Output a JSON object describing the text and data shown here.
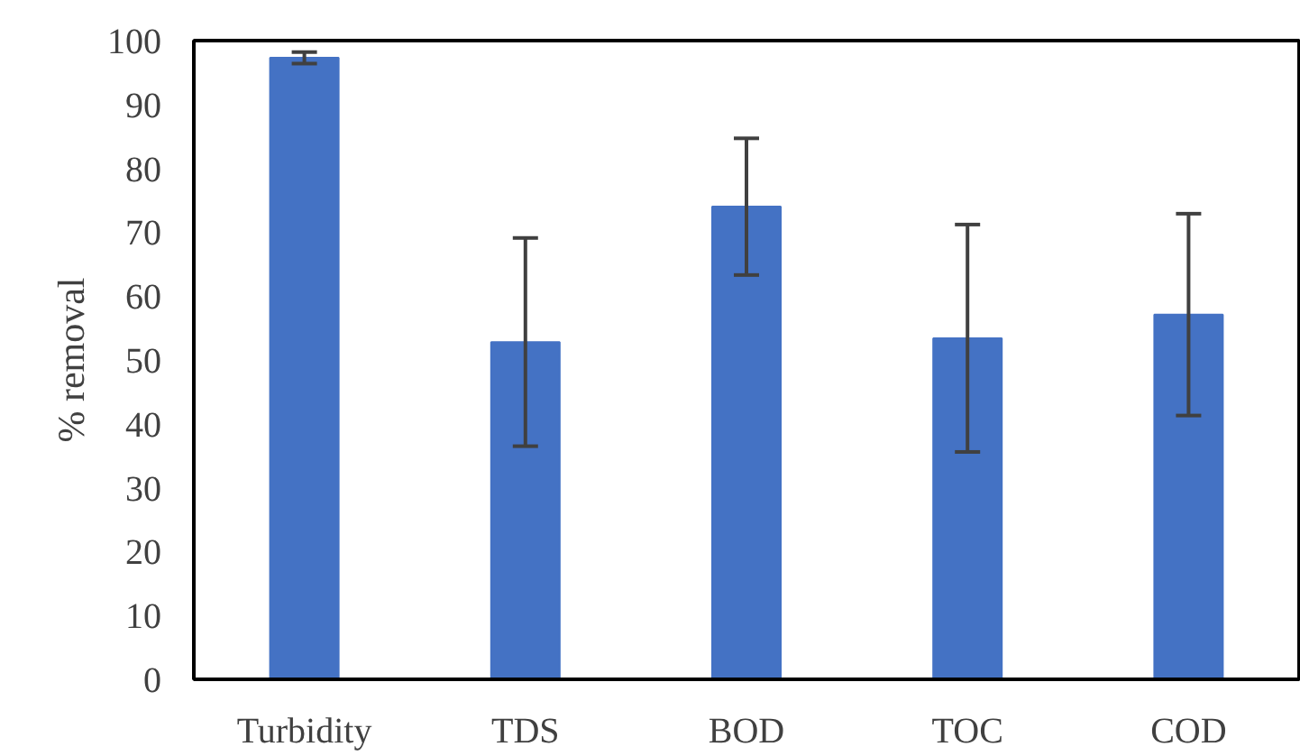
{
  "chart_data": {
    "type": "bar",
    "ylabel": "% removal",
    "categories": [
      "Turbidity",
      "TDS",
      "BOD",
      "TOC",
      "COD"
    ],
    "values": [
      97.3,
      52.8,
      74.0,
      53.4,
      57.1
    ],
    "errors": [
      0.9,
      16.3,
      10.7,
      17.8,
      15.8
    ],
    "color": "#4472c4",
    "ylim": [
      0,
      100
    ],
    "yticks": [
      0,
      10,
      20,
      30,
      40,
      50,
      60,
      70,
      80,
      90,
      100
    ],
    "grid": false
  }
}
